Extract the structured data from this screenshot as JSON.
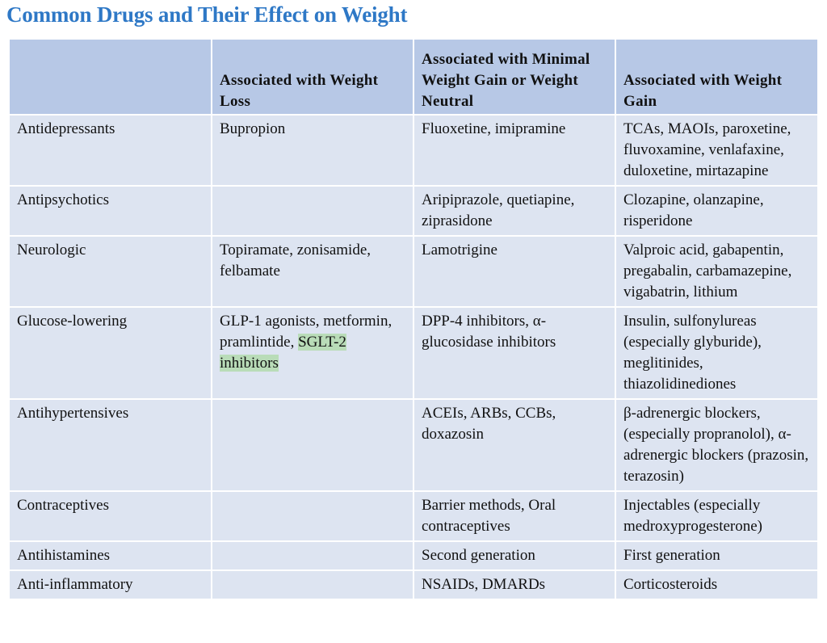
{
  "title": "Common Drugs and Their Effect on Weight",
  "table": {
    "headers": [
      "",
      "Associated with Weight Loss",
      "Associated with Minimal Weight Gain or Weight Neutral",
      "Associated with Weight Gain"
    ],
    "rows": [
      {
        "category": "Antidepressants",
        "loss": "Bupropion",
        "neutral": "Fluoxetine, imipramine",
        "gain": "TCAs, MAOIs, paroxetine, fluvoxamine, venlafaxine, duloxetine, mirtazapine"
      },
      {
        "category": "Antipsychotics",
        "loss": "",
        "neutral": "Aripiprazole, quetiapine, ziprasidone",
        "gain": "Clozapine, olanzapine, risperidone"
      },
      {
        "category": "Neurologic",
        "loss": "Topiramate, zonisamide, felbamate",
        "neutral": "Lamotrigine",
        "gain": "Valproic acid, gabapentin, pregabalin, carbamazepine, vigabatrin, lithium"
      },
      {
        "category": "Glucose-lowering",
        "loss": "GLP-1 agonists, metformin, pramlintide,",
        "loss_highlight": "SGLT-2 inhibitors",
        "neutral": "DPP-4 inhibitors, α-glucosidase inhibitors",
        "gain": "Insulin, sulfonylureas (especially glyburide), meglitinides, thiazolidinediones"
      },
      {
        "category": "Antihypertensives",
        "loss": "",
        "neutral": "ACEIs, ARBs, CCBs, doxazosin",
        "gain": "β-adrenergic blockers, (especially propranolol), α-adrenergic blockers (prazosin, terazosin)"
      },
      {
        "category": "Contraceptives",
        "loss": "",
        "neutral": "Barrier methods, Oral contraceptives",
        "gain": "Injectables (especially medroxyprogesterone)"
      },
      {
        "category": "Antihistamines",
        "loss": "",
        "neutral": "Second generation",
        "gain": "First generation"
      },
      {
        "category": "Anti-inflammatory",
        "loss": "",
        "neutral": "NSAIDs, DMARDs",
        "gain": "Corticosteroids"
      }
    ]
  }
}
